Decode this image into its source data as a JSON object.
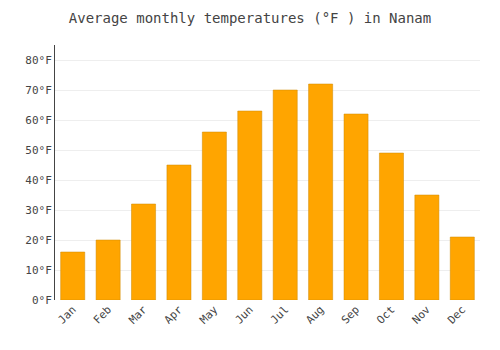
{
  "chart_data": {
    "type": "bar",
    "title": "Average monthly temperatures (°F ) in Nanam",
    "categories": [
      "Jan",
      "Feb",
      "Mar",
      "Apr",
      "May",
      "Jun",
      "Jul",
      "Aug",
      "Sep",
      "Oct",
      "Nov",
      "Dec"
    ],
    "values": [
      16,
      20,
      32,
      45,
      56,
      63,
      70,
      72,
      62,
      49,
      35,
      21
    ],
    "color": "#FFA500",
    "ylim": [
      0,
      85
    ],
    "yticks": [
      {
        "value": 0,
        "label": "0°F"
      },
      {
        "value": 10,
        "label": "10°F"
      },
      {
        "value": 20,
        "label": "20°F"
      },
      {
        "value": 30,
        "label": "30°F"
      },
      {
        "value": 40,
        "label": "40°F"
      },
      {
        "value": 50,
        "label": "50°F"
      },
      {
        "value": 60,
        "label": "60°F"
      },
      {
        "value": 70,
        "label": "70°F"
      },
      {
        "value": 80,
        "label": "80°F"
      }
    ],
    "grid": true
  }
}
